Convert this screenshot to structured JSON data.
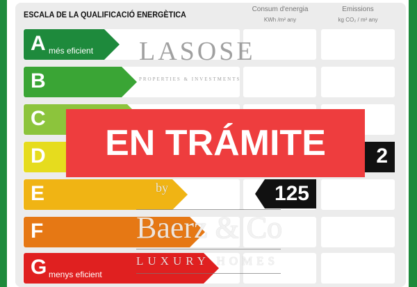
{
  "title": "ESCALA DE LA QUALIFICACIÓ ENERGÈTICA",
  "columns": {
    "consumption": {
      "label": "Consum d'energia",
      "unit": "KWh /m² any"
    },
    "emissions": {
      "label": "Emissions",
      "unit": "kg CO₂ / m² any"
    }
  },
  "ratings": [
    {
      "letter": "A",
      "sub": "més eficient",
      "color": "#1e8a3c"
    },
    {
      "letter": "B",
      "sub": "",
      "color": "#3aa535"
    },
    {
      "letter": "C",
      "sub": "",
      "color": "#8cc43c"
    },
    {
      "letter": "D",
      "sub": "",
      "color": "#e6dc1e"
    },
    {
      "letter": "E",
      "sub": "",
      "color": "#f0b414"
    },
    {
      "letter": "F",
      "sub": "",
      "color": "#e67814"
    },
    {
      "letter": "G",
      "sub": "menys eficient",
      "color": "#e02020"
    }
  ],
  "consumption_marker": {
    "value": "125",
    "rating": "E"
  },
  "emissions_marker": {
    "value": "2",
    "rating": "D"
  },
  "banner": {
    "text": "EN TRÁMITE",
    "color": "#ee3d3e"
  },
  "watermark": {
    "brand": "LASOSE",
    "tagline": "PROPERTIES & INVESTMENTS",
    "by": "by",
    "name": "Baerz & Co",
    "sub": "LUXURY HOMES"
  }
}
